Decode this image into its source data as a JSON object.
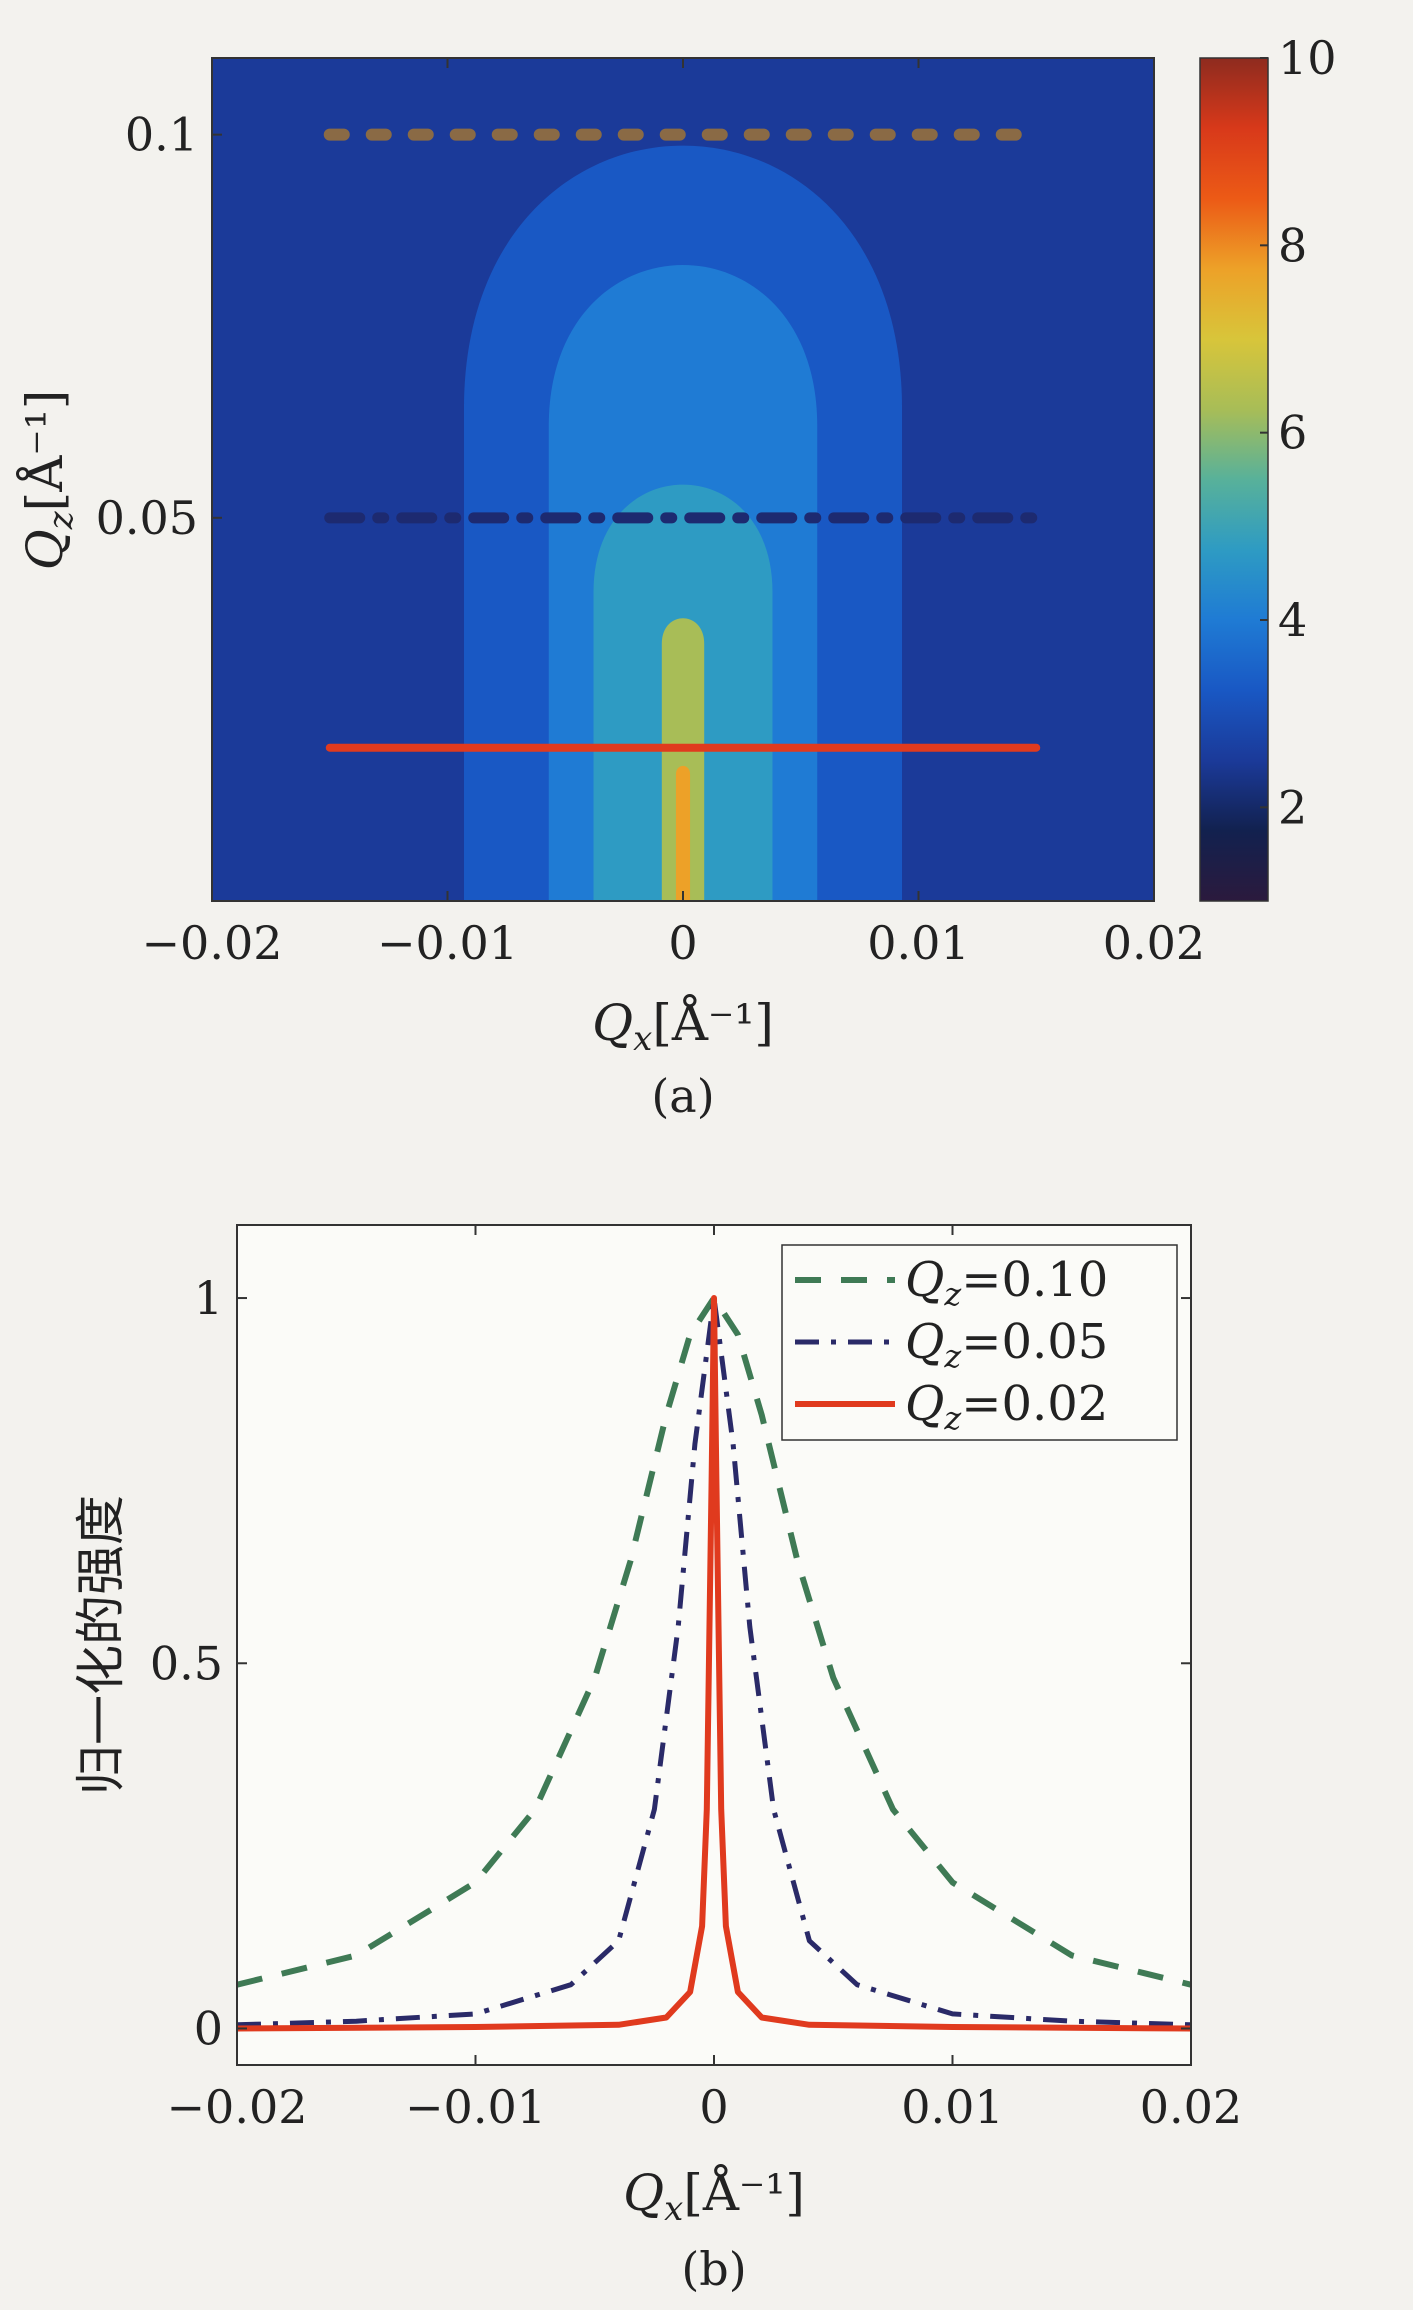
{
  "colors": {
    "background": "#f3f2ee",
    "heatmap_levels": [
      "#1b3a99",
      "#1958c4",
      "#1f7bd4",
      "#2e9bc3",
      "#58b19a",
      "#a8bd57",
      "#d8c53a",
      "#eda128",
      "#ec5a16",
      "#c82d10"
    ],
    "colorbar_gradient": [
      "#2b1a3d",
      "#12214f",
      "#1b3a99",
      "#1958c4",
      "#1f7bd4",
      "#2e9bc3",
      "#58b19a",
      "#a8bd57",
      "#d8c53a",
      "#eda128",
      "#ec5a16",
      "#d8391a",
      "#8e2b1f"
    ],
    "series_q010": "#3f7a55",
    "series_q005": "#2a2a68",
    "series_q002": "#e03a1e"
  },
  "chart_data": [
    {
      "type": "heatmap",
      "caption": "(a)",
      "xlabel": "Q",
      "xlabel_sub": "x",
      "xlabel_unit": "[Å⁻¹]",
      "ylabel": "Q",
      "ylabel_sub": "z",
      "ylabel_unit": "[Å⁻¹]",
      "xlim": [
        -0.02,
        0.02
      ],
      "ylim": [
        0,
        0.11
      ],
      "x_ticks": [
        "−0.02",
        "−0.01",
        "0",
        "0.01",
        "0.02"
      ],
      "x_tick_values": [
        -0.02,
        -0.01,
        0,
        0.01,
        0.02
      ],
      "y_ticks": [
        "0.05",
        "0.1"
      ],
      "y_tick_values": [
        0.05,
        0.1
      ],
      "colorbar": {
        "range": [
          1,
          10
        ],
        "ticks": [
          "2",
          "4",
          "6",
          "8",
          "10"
        ],
        "tick_values": [
          2,
          4,
          6,
          8,
          10
        ]
      },
      "contour_regions": [
        {
          "level": 4.0,
          "half_width_at_base": 0.0093,
          "top": 0.11
        },
        {
          "level": 4.6,
          "half_width_at_base": 0.0057,
          "top": 0.09
        },
        {
          "level": 5.3,
          "half_width_at_base": 0.0038,
          "top": 0.059
        },
        {
          "level": 6.5,
          "half_width_at_base": 0.0009,
          "top": 0.038
        },
        {
          "level": 8.5,
          "half_width_at_base": 0.0003,
          "top": 0.018
        }
      ],
      "line_cuts": [
        {
          "qz": 0.1,
          "x_range": [
            -0.015,
            0.015
          ],
          "style": "dashed"
        },
        {
          "qz": 0.05,
          "x_range": [
            -0.015,
            0.015
          ],
          "style": "dashdot"
        },
        {
          "qz": 0.02,
          "x_range": [
            -0.015,
            0.015
          ],
          "style": "solid"
        }
      ]
    },
    {
      "type": "line",
      "caption": "(b)",
      "xlabel": "Q",
      "xlabel_sub": "x",
      "xlabel_unit": "[Å⁻¹]",
      "ylabel": "归一化的强度",
      "xlim": [
        -0.02,
        0.02
      ],
      "ylim": [
        -0.05,
        1.1
      ],
      "x_ticks": [
        "−0.02",
        "−0.01",
        "0",
        "0.01",
        "0.02"
      ],
      "x_tick_values": [
        -0.02,
        -0.01,
        0,
        0.01,
        0.02
      ],
      "y_ticks": [
        "0",
        "0.5",
        "1"
      ],
      "y_tick_values": [
        0,
        0.5,
        1
      ],
      "legend_position": "top-right",
      "series": [
        {
          "name": "=0.10",
          "name_var": "Q",
          "name_sub": "z",
          "style": "dashed",
          "x": [
            -0.02,
            -0.015,
            -0.01,
            -0.0075,
            -0.005,
            -0.0035,
            -0.002,
            -0.001,
            0,
            0.001,
            0.002,
            0.0035,
            0.005,
            0.0075,
            0.01,
            0.015,
            0.02
          ],
          "y": [
            0.06,
            0.1,
            0.2,
            0.3,
            0.48,
            0.64,
            0.84,
            0.95,
            1.0,
            0.95,
            0.84,
            0.64,
            0.48,
            0.3,
            0.2,
            0.1,
            0.06
          ]
        },
        {
          "name": "=0.05",
          "name_var": "Q",
          "name_sub": "z",
          "style": "dashdot",
          "x": [
            -0.02,
            -0.015,
            -0.01,
            -0.006,
            -0.004,
            -0.0025,
            -0.0015,
            -0.0008,
            0,
            0.0008,
            0.0015,
            0.0025,
            0.004,
            0.006,
            0.01,
            0.015,
            0.02
          ],
          "y": [
            0.005,
            0.01,
            0.02,
            0.06,
            0.12,
            0.3,
            0.55,
            0.8,
            1.0,
            0.8,
            0.55,
            0.3,
            0.12,
            0.06,
            0.02,
            0.01,
            0.005
          ]
        },
        {
          "name": "=0.02",
          "name_var": "Q",
          "name_sub": "z",
          "style": "solid",
          "x": [
            -0.02,
            -0.01,
            -0.004,
            -0.002,
            -0.001,
            -0.0005,
            -0.0003,
            -0.0001,
            0,
            0.0001,
            0.0003,
            0.0005,
            0.001,
            0.002,
            0.004,
            0.01,
            0.02
          ],
          "y": [
            0.0,
            0.002,
            0.005,
            0.015,
            0.05,
            0.14,
            0.3,
            0.75,
            1.0,
            0.75,
            0.3,
            0.14,
            0.05,
            0.015,
            0.005,
            0.002,
            0.0
          ]
        }
      ]
    }
  ]
}
